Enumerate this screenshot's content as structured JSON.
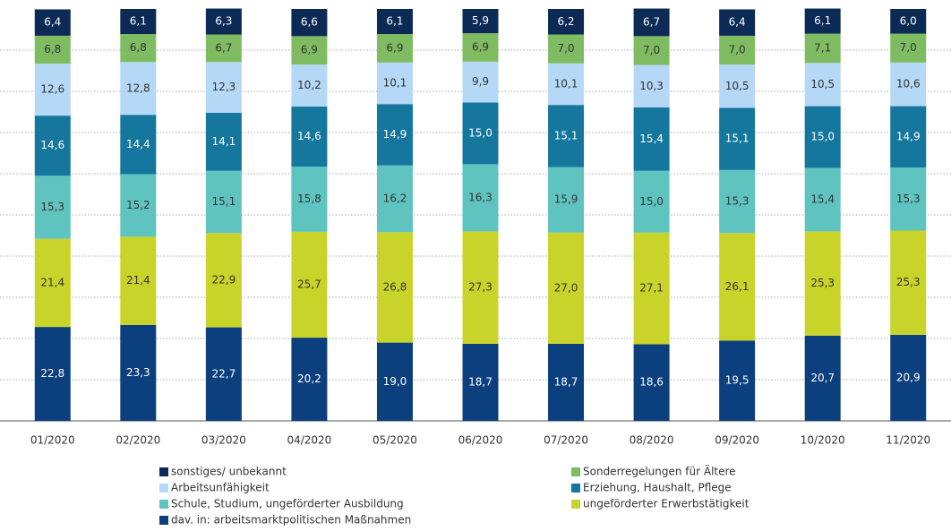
{
  "chart_data": {
    "type": "stacked-bar",
    "categories": [
      "01/2020",
      "02/2020",
      "03/2020",
      "04/2020",
      "05/2020",
      "06/2020",
      "07/2020",
      "08/2020",
      "09/2020",
      "10/2020",
      "11/2020"
    ],
    "ylim": [
      0,
      100
    ],
    "yticks": [
      10,
      20,
      30,
      40,
      50,
      60,
      70,
      80,
      90
    ],
    "grid": true,
    "series": [
      {
        "name": "sonstiges/ unbekannt",
        "color": "#0b2a55",
        "values": [
          6.4,
          6.1,
          6.3,
          6.6,
          6.1,
          5.9,
          6.2,
          6.7,
          6.4,
          6.1,
          6.0
        ],
        "value_labels": [
          "6,4",
          "6,1",
          "6,3",
          "6,6",
          "6,1",
          "5,9",
          "6,2",
          "6,7",
          "6,4",
          "6,1",
          "6,0"
        ]
      },
      {
        "name": "Sonderregelungen für Ältere",
        "color": "#7fbc61",
        "values": [
          6.8,
          6.8,
          6.7,
          6.9,
          6.9,
          6.9,
          7.0,
          7.0,
          7.0,
          7.1,
          7.0
        ],
        "value_labels": [
          "6,8",
          "6,8",
          "6,7",
          "6,9",
          "6,9",
          "6,9",
          "7,0",
          "7,0",
          "7,0",
          "7,1",
          "7,0"
        ]
      },
      {
        "name": "Arbeitsunfähigkeit",
        "color": "#b5d8f6",
        "values": [
          12.6,
          12.8,
          12.3,
          10.2,
          10.1,
          9.9,
          10.1,
          10.3,
          10.5,
          10.5,
          10.6
        ],
        "value_labels": [
          "12,6",
          "12,8",
          "12,3",
          "10,2",
          "10,1",
          "9,9",
          "10,1",
          "10,3",
          "10,5",
          "10,5",
          "10,6"
        ]
      },
      {
        "name": "Erziehung, Haushalt, Pflege",
        "color": "#16779e",
        "values": [
          14.6,
          14.4,
          14.1,
          14.6,
          14.9,
          15.0,
          15.1,
          15.4,
          15.1,
          15.0,
          14.9
        ],
        "value_labels": [
          "14,6",
          "14,4",
          "14,1",
          "14,6",
          "14,9",
          "15,0",
          "15,1",
          "15,4",
          "15,1",
          "15,0",
          "14,9"
        ]
      },
      {
        "name": "Schule, Studium, ungeförderter Ausbildung",
        "color": "#5fc4c0",
        "values": [
          15.3,
          15.2,
          15.1,
          15.8,
          16.2,
          16.3,
          15.9,
          15.0,
          15.3,
          15.4,
          15.3
        ],
        "value_labels": [
          "15,3",
          "15,2",
          "15,1",
          "15,8",
          "16,2",
          "16,3",
          "15,9",
          "15,0",
          "15,3",
          "15,4",
          "15,3"
        ]
      },
      {
        "name": "ungeförderter Erwerbstätigkeit",
        "color": "#c9d42b",
        "values": [
          21.4,
          21.4,
          22.9,
          25.7,
          26.8,
          27.3,
          27.0,
          27.1,
          26.1,
          25.3,
          25.3
        ],
        "value_labels": [
          "21,4",
          "21,4",
          "22,9",
          "25,7",
          "26,8",
          "27,3",
          "27,0",
          "27,1",
          "26,1",
          "25,3",
          "25,3"
        ]
      },
      {
        "name": "dav. in: arbeitsmarktpolitischen Maßnahmen",
        "color": "#0c3f7d",
        "values": [
          22.8,
          23.3,
          22.7,
          20.2,
          19.0,
          18.7,
          18.7,
          18.6,
          19.5,
          20.7,
          20.9
        ],
        "value_labels": [
          "22,8",
          "23,3",
          "22,7",
          "20,2",
          "19,0",
          "18,7",
          "18,7",
          "18,6",
          "19,5",
          "20,7",
          "20,9"
        ]
      }
    ]
  }
}
